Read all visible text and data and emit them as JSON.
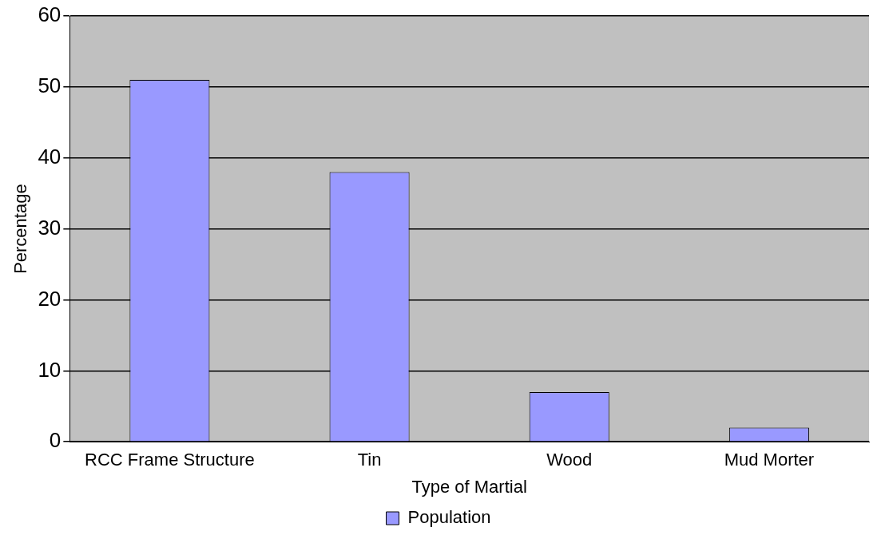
{
  "chart_data": {
    "type": "bar",
    "xlabel": "Type of Martial",
    "ylabel": "Percentage",
    "categories": [
      "RCC Frame Structure",
      "Tin",
      "Wood",
      "Mud Morter"
    ],
    "series": [
      {
        "name": "Population",
        "color": "#9999ff",
        "values": [
          51,
          38,
          7,
          2
        ]
      }
    ],
    "ylim": [
      0,
      60
    ],
    "yticks": [
      0,
      10,
      20,
      30,
      40,
      50,
      60
    ],
    "grid": "y",
    "legend": "bottom"
  }
}
